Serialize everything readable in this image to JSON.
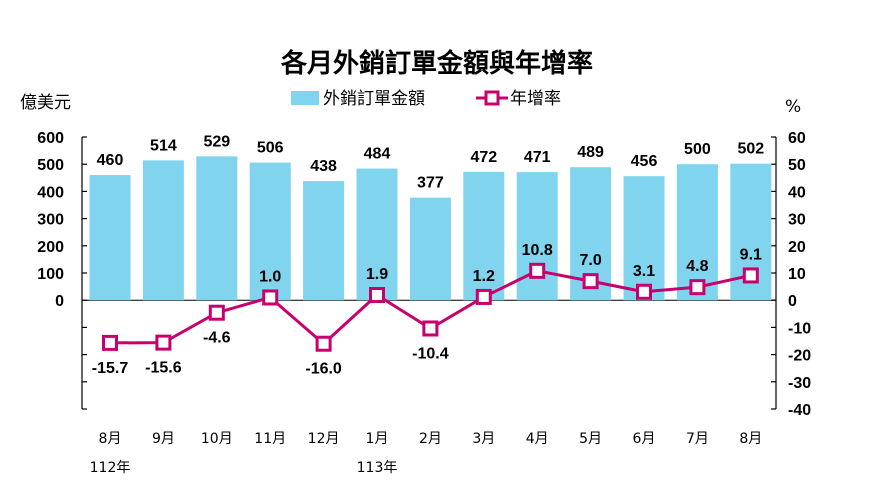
{
  "chart_data": {
    "type": "bar+line",
    "title": "各月外銷訂單金額與年增率",
    "y_left_label": "億美元",
    "y_right_label": "%",
    "categories": [
      "8月",
      "9月",
      "10月",
      "11月",
      "12月",
      "1月",
      "2月",
      "3月",
      "4月",
      "5月",
      "6月",
      "7月",
      "8月"
    ],
    "years": [
      {
        "label": "112年",
        "category_index": 0
      },
      {
        "label": "113年",
        "category_index": 5
      }
    ],
    "y_left_ticks": [
      "600",
      "500",
      "400",
      "300",
      "200",
      "100",
      "0"
    ],
    "y_right_ticks": [
      "60",
      "50",
      "40",
      "30",
      "20",
      "10",
      "0",
      "-10",
      "-20",
      "-30",
      "-40"
    ],
    "y_left_range": [
      -400,
      600
    ],
    "y_right_range": [
      -40,
      60
    ],
    "grid": false,
    "legend_position": "top-center",
    "series": [
      {
        "name": "外銷訂單金額",
        "kind": "bar",
        "axis": "left",
        "color": "#80D4EE",
        "values": [
          460,
          514,
          529,
          506,
          438,
          484,
          377,
          472,
          471,
          489,
          456,
          500,
          502
        ],
        "labels": [
          "460",
          "514",
          "529",
          "506",
          "438",
          "484",
          "377",
          "472",
          "471",
          "489",
          "456",
          "500",
          "502"
        ]
      },
      {
        "name": "年增率",
        "kind": "line",
        "axis": "right",
        "color": "#C8006E",
        "values": [
          -15.7,
          -15.6,
          -4.6,
          1.0,
          -16.0,
          1.9,
          -10.4,
          1.2,
          10.8,
          7.0,
          3.1,
          4.8,
          9.1
        ],
        "labels": [
          "-15.7",
          "-15.6",
          "-4.6",
          "1.0",
          "-16.0",
          "1.9",
          "-10.4",
          "1.2",
          "10.8",
          "7.0",
          "3.1",
          "4.8",
          "9.1"
        ]
      }
    ]
  }
}
